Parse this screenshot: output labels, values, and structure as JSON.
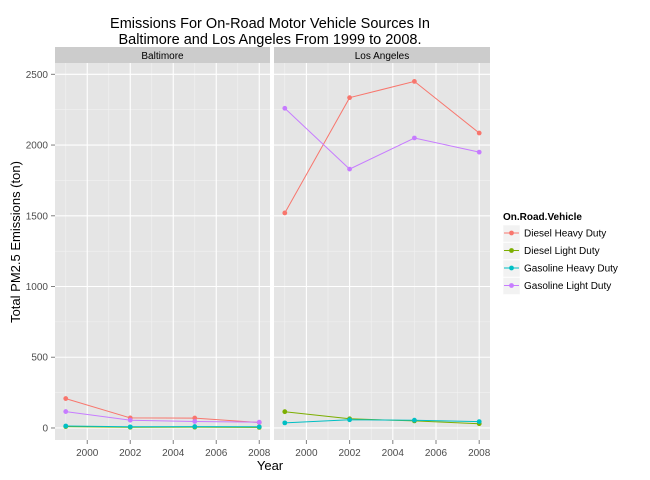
{
  "chart_data": {
    "type": "line",
    "title": [
      "Emissions For On-Road Motor Vehicle Sources In",
      "Baltimore and Los Angeles From 1999 to 2008."
    ],
    "xlabel": "Year",
    "ylabel": "Total PM2.5 Emissions (ton)",
    "x": [
      1999,
      2002,
      2005,
      2008
    ],
    "xlim": [
      1998.5,
      2008.5
    ],
    "ylim": [
      -85,
      2580
    ],
    "x_ticks": [
      2000,
      2002,
      2004,
      2006,
      2008
    ],
    "y_ticks": [
      0,
      500,
      1000,
      1500,
      2000,
      2500
    ],
    "grid": true,
    "legend_position": "right",
    "legend_title": "On.Road.Vehicle",
    "panels": [
      {
        "name": "Baltimore",
        "series": [
          {
            "name": "Diesel Heavy Duty",
            "color": "#F8766D",
            "values": [
              208,
              71,
              70,
              39
            ]
          },
          {
            "name": "Diesel Light Duty",
            "color": "#7CAE00",
            "values": [
              10,
              5,
              6,
              4
            ]
          },
          {
            "name": "Gasoline Heavy Duty",
            "color": "#00BFC4",
            "values": [
              14,
              8,
              10,
              8
            ]
          },
          {
            "name": "Gasoline Light Duty",
            "color": "#C77CFF",
            "values": [
              116,
              55,
              46,
              41
            ]
          }
        ]
      },
      {
        "name": "Los Angeles",
        "series": [
          {
            "name": "Diesel Heavy Duty",
            "color": "#F8766D",
            "values": [
              1520,
              2335,
              2450,
              2085
            ]
          },
          {
            "name": "Diesel Light Duty",
            "color": "#7CAE00",
            "values": [
              115,
              65,
              50,
              30
            ]
          },
          {
            "name": "Gasoline Heavy Duty",
            "color": "#00BFC4",
            "values": [
              36,
              58,
              55,
              45
            ]
          },
          {
            "name": "Gasoline Light Duty",
            "color": "#C77CFF",
            "values": [
              2260,
              1830,
              2050,
              1950
            ]
          }
        ]
      }
    ]
  }
}
